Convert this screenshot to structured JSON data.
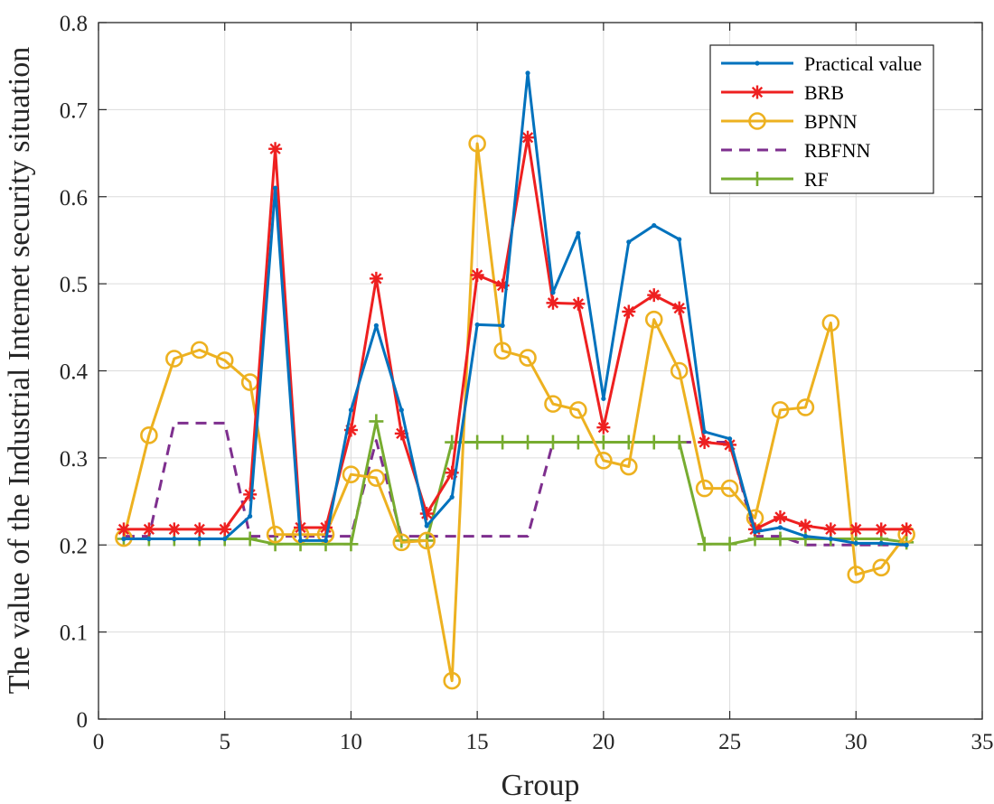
{
  "chart_data": {
    "type": "line",
    "xlabel": "Group",
    "ylabel": "The value of the Industrial Internet security situation",
    "xlim": [
      0,
      35
    ],
    "ylim": [
      0,
      0.8
    ],
    "xticks": [
      0,
      5,
      10,
      15,
      20,
      25,
      30,
      35
    ],
    "yticks": [
      0,
      0.1,
      0.2,
      0.3,
      0.4,
      0.5,
      0.6,
      0.7,
      0.8
    ],
    "xtick_labels": [
      "0",
      "5",
      "10",
      "15",
      "20",
      "25",
      "30",
      "35"
    ],
    "ytick_labels": [
      "0",
      "0.1",
      "0.2",
      "0.3",
      "0.4",
      "0.5",
      "0.6",
      "0.7",
      "0.8"
    ],
    "grid": true,
    "legend_position": "top-right",
    "x": [
      1,
      2,
      3,
      4,
      5,
      6,
      7,
      8,
      9,
      10,
      11,
      12,
      13,
      14,
      15,
      16,
      17,
      18,
      19,
      20,
      21,
      22,
      23,
      24,
      25,
      26,
      27,
      28,
      29,
      30,
      31,
      32
    ],
    "series": [
      {
        "name": "Practical value",
        "color": "#0072BD",
        "marker": "dot",
        "dash": "solid",
        "values": [
          0.207,
          0.207,
          0.207,
          0.207,
          0.207,
          0.233,
          0.61,
          0.205,
          0.205,
          0.355,
          0.452,
          0.355,
          0.222,
          0.255,
          0.453,
          0.452,
          0.742,
          0.49,
          0.558,
          0.368,
          0.548,
          0.567,
          0.551,
          0.33,
          0.322,
          0.215,
          0.22,
          0.21,
          0.207,
          0.202,
          0.202,
          0.2
        ]
      },
      {
        "name": "BRB",
        "color": "#EE2020",
        "marker": "asterisk",
        "dash": "solid",
        "values": [
          0.218,
          0.218,
          0.218,
          0.218,
          0.218,
          0.258,
          0.655,
          0.22,
          0.22,
          0.332,
          0.506,
          0.328,
          0.236,
          0.283,
          0.51,
          0.498,
          0.668,
          0.478,
          0.477,
          0.335,
          0.468,
          0.487,
          0.472,
          0.318,
          0.315,
          0.218,
          0.232,
          0.222,
          0.218,
          0.218,
          0.218,
          0.218
        ]
      },
      {
        "name": "BPNN",
        "color": "#EDB120",
        "marker": "circle",
        "dash": "solid",
        "values": [
          0.208,
          0.326,
          0.414,
          0.424,
          0.412,
          0.387,
          0.212,
          0.212,
          0.212,
          0.281,
          0.277,
          0.203,
          0.205,
          0.044,
          0.661,
          0.423,
          0.415,
          0.362,
          0.355,
          0.297,
          0.29,
          0.459,
          0.4,
          0.265,
          0.265,
          0.231,
          0.355,
          0.358,
          0.455,
          0.166,
          0.174,
          0.212
        ]
      },
      {
        "name": "RBFNN",
        "color": "#7E2F8E",
        "marker": "none",
        "dash": "dashed",
        "values": [
          0.21,
          0.21,
          0.34,
          0.34,
          0.34,
          0.21,
          0.21,
          0.21,
          0.21,
          0.21,
          0.32,
          0.21,
          0.21,
          0.21,
          0.21,
          0.21,
          0.21,
          0.318,
          0.318,
          0.318,
          0.318,
          0.318,
          0.318,
          0.318,
          0.318,
          0.21,
          0.21,
          0.2,
          0.2,
          0.2,
          0.2,
          0.2
        ]
      },
      {
        "name": "RF",
        "color": "#77AC30",
        "marker": "plus",
        "dash": "solid",
        "values": [
          0.207,
          0.207,
          0.207,
          0.207,
          0.207,
          0.207,
          0.201,
          0.201,
          0.201,
          0.201,
          0.342,
          0.205,
          0.205,
          0.318,
          0.318,
          0.318,
          0.318,
          0.318,
          0.318,
          0.318,
          0.318,
          0.318,
          0.318,
          0.201,
          0.201,
          0.207,
          0.207,
          0.207,
          0.207,
          0.207,
          0.207,
          0.203
        ]
      }
    ]
  }
}
